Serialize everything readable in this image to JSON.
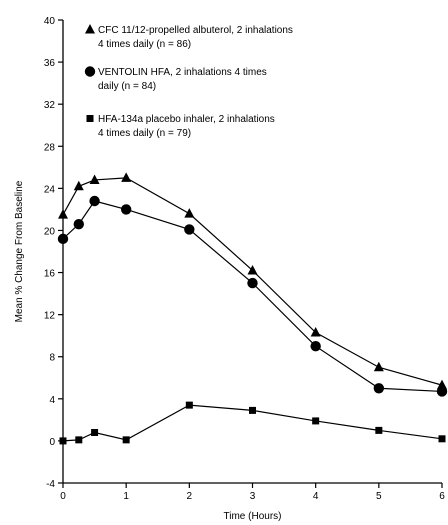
{
  "chart_data": {
    "type": "line",
    "xlabel": "Time (Hours)",
    "ylabel": "Mean % Change From Baseline",
    "xlim": [
      0,
      6
    ],
    "ylim": [
      -4,
      40
    ],
    "xticks": [
      0,
      1,
      2,
      3,
      4,
      5,
      6
    ],
    "yticks": [
      -4,
      0,
      4,
      8,
      12,
      16,
      20,
      24,
      28,
      32,
      36,
      40
    ],
    "grid": false,
    "legend_position": "top-left",
    "series": [
      {
        "name": "CFC 11/12-propelled albuterol, 2 inhalations 4 times daily (n = 86)",
        "legend_lines": [
          "CFC 11/12-propelled albuterol, 2 inhalations",
          "4 times daily (n = 86)"
        ],
        "marker": "triangle",
        "x": [
          0,
          0.25,
          0.5,
          1,
          2,
          3,
          4,
          5,
          6
        ],
        "y": [
          21.5,
          24.2,
          24.8,
          25,
          21.6,
          16.2,
          10.3,
          7.0,
          5.3
        ]
      },
      {
        "name": "VENTOLIN HFA, 2 inhalations 4 times daily (n = 84)",
        "legend_lines": [
          "VENTOLIN HFA, 2 inhalations 4 times",
          "daily (n = 84)"
        ],
        "marker": "circle",
        "x": [
          0,
          0.25,
          0.5,
          1,
          2,
          3,
          4,
          5,
          6
        ],
        "y": [
          19.2,
          20.6,
          22.8,
          22.0,
          20.1,
          15.0,
          9.0,
          5.0,
          4.7
        ]
      },
      {
        "name": "HFA-134a placebo inhaler, 2 inhalations 4 times daily (n = 79)",
        "legend_lines": [
          "HFA-134a placebo inhaler, 2 inhalations",
          "4 times daily (n = 79)"
        ],
        "marker": "square",
        "x": [
          0,
          0.25,
          0.5,
          1,
          2,
          3,
          4,
          5,
          6
        ],
        "y": [
          0,
          0.1,
          0.8,
          0.1,
          3.4,
          2.9,
          1.9,
          1.0,
          0.2
        ]
      }
    ]
  }
}
